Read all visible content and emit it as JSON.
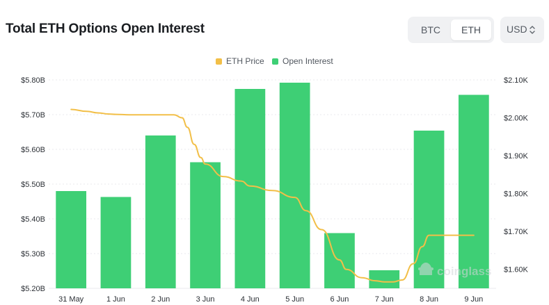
{
  "header": {
    "title": "Total ETH Options Open Interest",
    "asset_toggle": [
      "BTC",
      "ETH"
    ],
    "selected_asset": "ETH",
    "currency": "USD"
  },
  "watermark": "coinglass",
  "colors": {
    "open_interest": "#3ecf75",
    "eth_price": "#f2bf48",
    "grid": "#e8eaed"
  },
  "chart_data": {
    "type": "bar",
    "categories": [
      "31 May",
      "1 Jun",
      "2 Jun",
      "3 Jun",
      "4 Jun",
      "5 Jun",
      "6 Jun",
      "7 Jun",
      "8 Jun",
      "9 Jun"
    ],
    "series": [
      {
        "name": "Open Interest",
        "type": "bar",
        "axis": "left",
        "values": [
          5.48,
          5.463,
          5.64,
          5.563,
          5.774,
          5.792,
          5.359,
          5.252,
          5.654,
          5.757
        ]
      },
      {
        "name": "ETH Price",
        "type": "line",
        "axis": "right",
        "x": [
          0,
          0.35,
          0.6,
          0.85,
          1,
          1.3,
          2,
          2.3,
          2.48,
          2.6,
          2.75,
          2.9,
          3,
          3.4,
          3.8,
          4,
          4.5,
          5,
          5.25,
          5.6,
          6,
          6.15,
          6.5,
          6.8,
          7,
          7.2,
          7.4,
          7.65,
          7.85,
          8,
          8.5,
          9
        ],
        "values": [
          2.022,
          2.017,
          2.013,
          2.01,
          2.009,
          2.008,
          2.008,
          2.008,
          2.0,
          1.975,
          1.93,
          1.895,
          1.878,
          1.845,
          1.833,
          1.82,
          1.808,
          1.79,
          1.755,
          1.705,
          1.625,
          1.6,
          1.578,
          1.57,
          1.567,
          1.567,
          1.572,
          1.615,
          1.66,
          1.69,
          1.69,
          1.69
        ]
      }
    ],
    "y_left": {
      "ticks": [
        "$5.20B",
        "$5.30B",
        "$5.40B",
        "$5.50B",
        "$5.60B",
        "$5.70B",
        "$5.80B"
      ],
      "range": [
        5.2,
        5.8
      ],
      "unit": "B USD"
    },
    "y_right": {
      "ticks": [
        "$1.60K",
        "$1.70K",
        "$1.80K",
        "$1.90K",
        "$2.00K",
        "$2.10K"
      ],
      "range": [
        1.55,
        2.1
      ],
      "unit": "K USD"
    },
    "legend": [
      "ETH Price",
      "Open Interest"
    ],
    "legend_position": "top-center",
    "grid": true
  }
}
